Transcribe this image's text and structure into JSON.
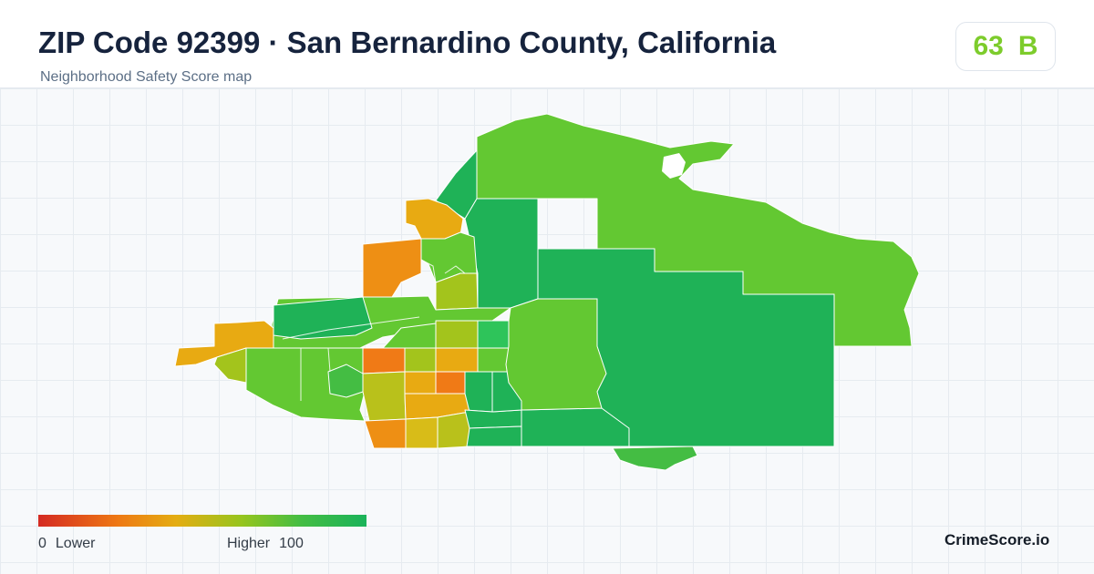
{
  "header": {
    "title": "ZIP Code 92399 · San Bernardino County, California",
    "subtitle": "Neighborhood Safety Score map"
  },
  "score": {
    "value": "63",
    "grade": "B",
    "color": "#7dcc2c"
  },
  "legend": {
    "min_value": "0",
    "min_label": "Lower",
    "max_label": "Higher",
    "max_value": "100",
    "colors": [
      "#d42a22",
      "#ee7814",
      "#e4ad12",
      "#96c51e",
      "#44bd43",
      "#1ab35a"
    ]
  },
  "brand": "CrimeScore.io",
  "map": {
    "region_colors": {
      "lime": "#63c832",
      "green": "#1fb257",
      "mid_green": "#44bd43",
      "bright_green": "#2ec45a",
      "yellow_green": "#a3c41c",
      "olive": "#b9c11b",
      "amber": "#e8aa12",
      "orange": "#ee8f14",
      "dark_orange": "#f07a16",
      "gold": "#d8bc18"
    }
  }
}
